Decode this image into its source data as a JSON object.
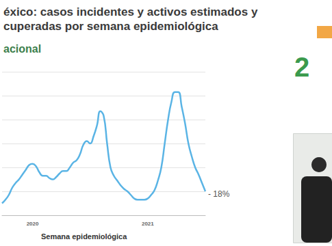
{
  "chart_data": {
    "type": "line",
    "title": "éxico: casos incidentes y activos estimados y\ncuperadas por semana epidemiológica",
    "subtitle": "acional",
    "xlabel": "Semana epidemiológica",
    "annotation": "- 18%",
    "side_text": "2",
    "categories": [
      null,
      null,
      null,
      null,
      null,
      null,
      null,
      null,
      null,
      "2020",
      null,
      null,
      null,
      null,
      null,
      null,
      null,
      null,
      null,
      null,
      null,
      null,
      null,
      null,
      null,
      null,
      null,
      null,
      null,
      null,
      null,
      null,
      null,
      null,
      null,
      null,
      null,
      null,
      null,
      null,
      null,
      null,
      null,
      "2021",
      null,
      null,
      null,
      null,
      null,
      null,
      null,
      null,
      null,
      null,
      null,
      null,
      null,
      null,
      null,
      null,
      null
    ],
    "values": [
      5,
      6.5,
      8.5,
      11.5,
      13.5,
      15,
      17,
      19,
      21,
      21.5,
      20.5,
      18,
      16.5,
      16.5,
      15.5,
      15,
      16,
      17.5,
      18.5,
      18.5,
      20,
      22,
      23,
      25.5,
      29.5,
      31,
      30,
      33,
      37.5,
      43.5,
      41.5,
      30,
      20,
      16.5,
      14.5,
      12.5,
      11,
      10,
      8.5,
      7,
      6.5,
      6.5,
      6.5,
      7,
      8.5,
      10.5,
      14.5,
      20,
      30,
      40,
      47.5,
      51.5,
      51.5,
      45.5,
      38.5,
      30,
      24.5,
      20,
      17,
      13.5,
      10
    ],
    "color": "#5ab4e5",
    "ylim": [
      0,
      60
    ],
    "yticks": [
      0,
      10,
      20,
      30,
      40,
      50,
      60
    ],
    "grid": true,
    "tick_labels": "x"
  }
}
